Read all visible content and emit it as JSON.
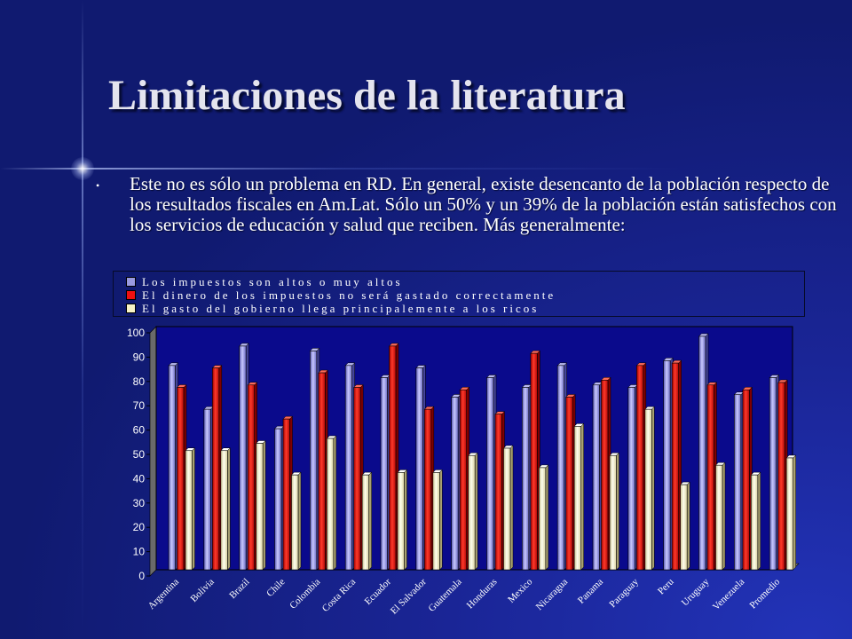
{
  "slide": {
    "title": "Limitaciones de la literatura",
    "bullet": "Este no es sólo un problema en RD. En general, existe desencanto de la población respecto de los resultados fiscales en Am.Lat.  Sólo un 50% y un 39% de la población están satisfechos con los servicios de educación y salud que reciben.  Más generalmente:"
  },
  "chart_data": {
    "type": "bar",
    "title": "",
    "xlabel": "",
    "ylabel": "",
    "ylim": [
      0,
      100
    ],
    "yticks": [
      0,
      10,
      20,
      30,
      40,
      50,
      60,
      70,
      80,
      90,
      100
    ],
    "legend_position": "top",
    "grid": false,
    "categories": [
      "Argentina",
      "Bolivia",
      "Brazil",
      "Chile",
      "Colombia",
      "Costa Rica",
      "Ecuador",
      "El Salvador",
      "Guatemala",
      "Honduras",
      "Mexico",
      "Nicaragua",
      "Panama",
      "Paraguay",
      "Peru",
      "Uruguay",
      "Venezuela",
      "Promedio"
    ],
    "series": [
      {
        "name": "Los impuestos son altos o muy altos",
        "color": "#9a9ae0",
        "values": [
          84,
          66,
          92,
          58,
          90,
          84,
          79,
          83,
          71,
          79,
          75,
          84,
          76,
          75,
          86,
          96,
          72,
          79
        ]
      },
      {
        "name": "El dinero de los impuestos no será gastado correctamente",
        "color": "#ee1010",
        "values": [
          75,
          83,
          76,
          62,
          81,
          75,
          92,
          66,
          74,
          64,
          89,
          71,
          78,
          84,
          85,
          76,
          74,
          77
        ]
      },
      {
        "name": "El gasto del gobierno llega principalemente a los ricos",
        "color": "#f8f3c6",
        "values": [
          49,
          49,
          52,
          39,
          54,
          39,
          40,
          40,
          47,
          50,
          42,
          59,
          47,
          66,
          35,
          43,
          39,
          46
        ]
      }
    ]
  }
}
